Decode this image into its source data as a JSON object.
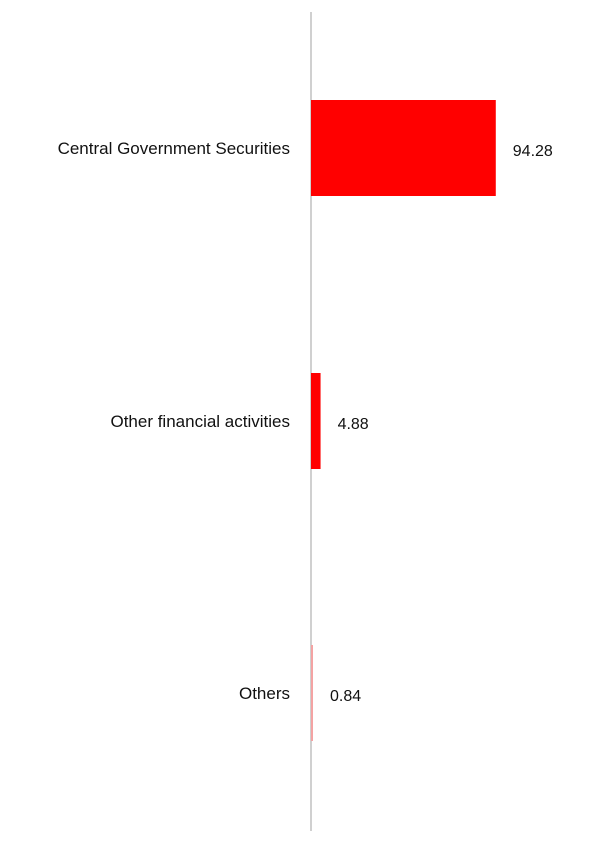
{
  "chart_data": {
    "type": "bar",
    "orientation": "horizontal",
    "categories": [
      "Central Government Securities",
      "Other financial activities",
      "Others"
    ],
    "values": [
      94.28,
      4.88,
      0.84
    ],
    "value_labels": [
      "94.28",
      "4.88",
      "0.84"
    ],
    "xlim": [
      0,
      100
    ],
    "grid": false,
    "legend": "none",
    "colors": {
      "bar": "#ff0000",
      "bar_small": "#f4a3a3",
      "axis": "#d0d0d0"
    }
  }
}
